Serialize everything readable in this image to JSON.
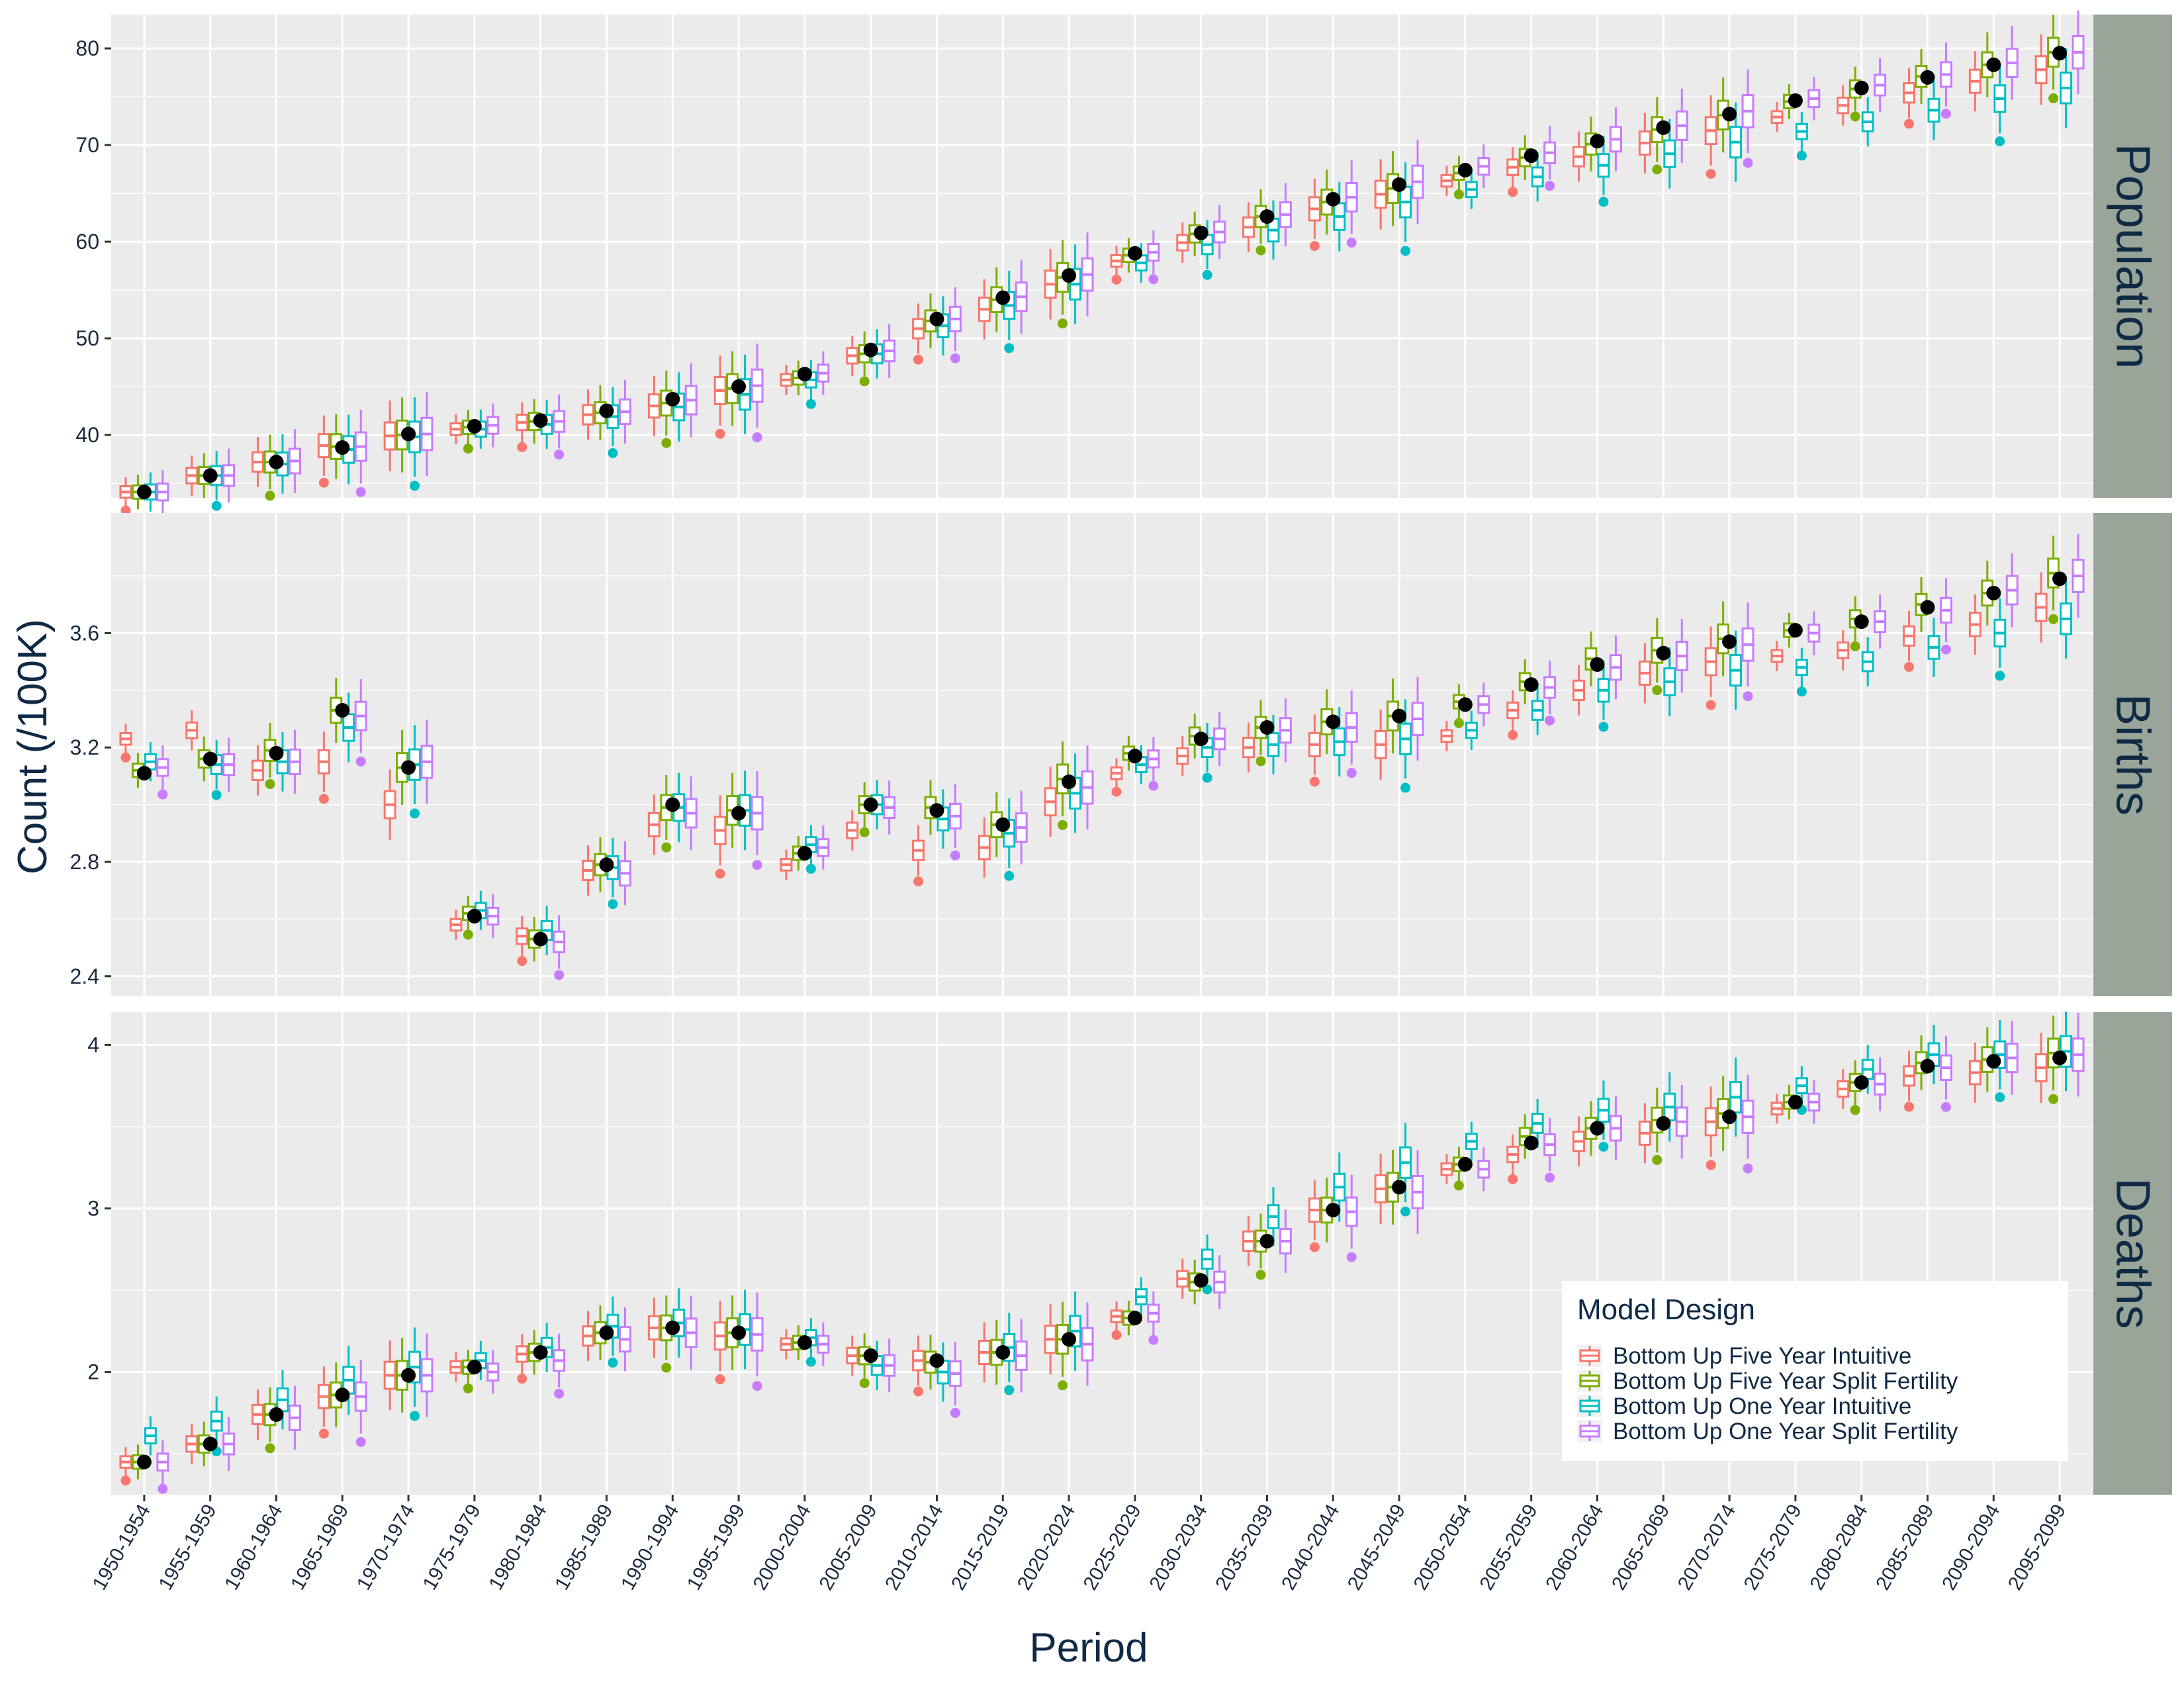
{
  "chart_data": {
    "type": "boxplot",
    "xlabel": "Period",
    "ylabel": "Count (/100K)",
    "periods": [
      "1950-1954",
      "1955-1959",
      "1960-1964",
      "1965-1969",
      "1970-1974",
      "1975-1979",
      "1980-1984",
      "1985-1989",
      "1990-1994",
      "1995-1999",
      "2000-2004",
      "2005-2009",
      "2010-2014",
      "2015-2019",
      "2020-2024",
      "2025-2029",
      "2030-2034",
      "2035-2039",
      "2040-2044",
      "2045-2049",
      "2050-2054",
      "2055-2059",
      "2060-2064",
      "2065-2069",
      "2070-2074",
      "2075-2079",
      "2080-2084",
      "2085-2089",
      "2090-2094",
      "2095-2099"
    ],
    "legend": {
      "title": "Model Design",
      "position": "bottom-right",
      "entries": [
        {
          "label": "Bottom Up Five Year Intuitive",
          "color": "#F8766D"
        },
        {
          "label": "Bottom Up Five Year Split Fertility",
          "color": "#7CAE00"
        },
        {
          "label": "Bottom Up One Year Intuitive",
          "color": "#00BFC4"
        },
        {
          "label": "Bottom Up One Year Split Fertility",
          "color": "#C77CFF"
        }
      ]
    },
    "observed_point_color": "#000000",
    "panel_background": "#EBEBEB",
    "strip_background": "#98A598",
    "facets": [
      {
        "label": "Population",
        "ylim": [
          33.5,
          83.5
        ],
        "yticks": [
          40,
          50,
          60,
          70,
          80
        ],
        "observed": [
          34.1,
          35.8,
          37.2,
          38.7,
          40.1,
          40.9,
          41.5,
          42.5,
          43.7,
          45.0,
          46.3,
          48.8,
          52.0,
          54.2,
          56.5,
          58.8,
          60.9,
          62.6,
          64.4,
          65.9,
          67.4,
          68.9,
          70.4,
          71.8,
          73.2,
          74.6,
          75.9,
          77.0,
          78.3,
          79.5
        ],
        "series_medians": [
          [
            34.1,
            35.8,
            37.2,
            38.9,
            39.9,
            40.6,
            41.3,
            42.1,
            43.0,
            44.6,
            45.7,
            48.2,
            51.0,
            53.0,
            55.6,
            58.0,
            59.9,
            61.5,
            63.4,
            64.9,
            66.3,
            67.7,
            68.8,
            70.2,
            71.5,
            72.9,
            74.1,
            75.4,
            76.6,
            77.8
          ],
          [
            34.1,
            35.8,
            37.2,
            38.8,
            40.0,
            40.8,
            41.4,
            42.3,
            43.3,
            44.8,
            45.9,
            48.4,
            51.8,
            54.0,
            56.3,
            58.6,
            60.8,
            62.6,
            64.1,
            65.5,
            67.1,
            68.7,
            70.1,
            71.6,
            73.1,
            74.5,
            75.8,
            77.1,
            78.3,
            79.6
          ],
          [
            34.1,
            35.8,
            37.0,
            38.5,
            39.8,
            40.6,
            41.1,
            41.9,
            42.9,
            44.2,
            45.7,
            48.4,
            51.3,
            53.4,
            55.6,
            57.8,
            59.7,
            61.2,
            62.6,
            64.1,
            65.4,
            66.7,
            67.9,
            69.1,
            70.3,
            71.4,
            72.4,
            73.6,
            74.8,
            75.9
          ],
          [
            34.1,
            35.8,
            37.3,
            38.8,
            40.1,
            41.0,
            41.4,
            42.4,
            43.6,
            45.1,
            46.4,
            48.7,
            52.0,
            54.3,
            56.6,
            58.9,
            61.0,
            62.8,
            64.6,
            66.2,
            67.8,
            69.2,
            70.6,
            72.0,
            73.5,
            74.8,
            76.2,
            77.3,
            78.5,
            79.6
          ]
        ]
      },
      {
        "label": "Births",
        "ylim": [
          2.33,
          4.02
        ],
        "yticks": [
          2.4,
          2.8,
          3.2,
          3.6
        ],
        "observed": [
          3.11,
          3.16,
          3.18,
          3.33,
          3.13,
          2.61,
          2.53,
          2.79,
          3.0,
          2.97,
          2.83,
          3.0,
          2.98,
          2.93,
          3.08,
          3.17,
          3.23,
          3.27,
          3.29,
          3.31,
          3.35,
          3.42,
          3.49,
          3.53,
          3.57,
          3.61,
          3.64,
          3.69,
          3.74,
          3.79
        ],
        "series_medians": [
          [
            3.23,
            3.26,
            3.12,
            3.15,
            3.0,
            2.58,
            2.54,
            2.77,
            2.93,
            2.91,
            2.79,
            2.91,
            2.84,
            2.85,
            3.01,
            3.11,
            3.17,
            3.2,
            3.21,
            3.21,
            3.24,
            3.33,
            3.4,
            3.46,
            3.5,
            3.52,
            3.54,
            3.59,
            3.63,
            3.69
          ],
          [
            3.12,
            3.16,
            3.19,
            3.33,
            3.13,
            2.62,
            2.53,
            2.79,
            2.99,
            2.98,
            2.83,
            3.0,
            2.99,
            2.93,
            3.09,
            3.18,
            3.24,
            3.27,
            3.29,
            3.31,
            3.36,
            3.43,
            3.51,
            3.54,
            3.58,
            3.61,
            3.65,
            3.7,
            3.74,
            3.81
          ],
          [
            3.15,
            3.14,
            3.15,
            3.27,
            3.14,
            2.63,
            2.56,
            2.78,
            2.99,
            2.98,
            2.86,
            3.0,
            2.95,
            2.9,
            3.04,
            3.14,
            3.2,
            3.21,
            3.22,
            3.23,
            3.26,
            3.33,
            3.4,
            3.43,
            3.47,
            3.48,
            3.5,
            3.55,
            3.6,
            3.65
          ],
          [
            3.13,
            3.14,
            3.15,
            3.31,
            3.15,
            2.61,
            2.52,
            2.76,
            2.97,
            2.97,
            2.85,
            2.99,
            2.96,
            2.92,
            3.06,
            3.16,
            3.23,
            3.26,
            3.27,
            3.3,
            3.35,
            3.41,
            3.48,
            3.52,
            3.56,
            3.6,
            3.64,
            3.68,
            3.75,
            3.8
          ]
        ]
      },
      {
        "label": "Deaths",
        "ylim": [
          1.25,
          4.2
        ],
        "yticks": [
          2,
          3,
          4
        ],
        "observed": [
          1.45,
          1.56,
          1.74,
          1.86,
          1.98,
          2.03,
          2.12,
          2.24,
          2.27,
          2.24,
          2.18,
          2.1,
          2.07,
          2.12,
          2.2,
          2.33,
          2.56,
          2.8,
          2.99,
          3.13,
          3.27,
          3.4,
          3.49,
          3.52,
          3.56,
          3.65,
          3.77,
          3.87,
          3.9,
          3.92
        ],
        "series_medians": [
          [
            1.45,
            1.56,
            1.74,
            1.85,
            1.98,
            2.03,
            2.11,
            2.22,
            2.27,
            2.22,
            2.17,
            2.1,
            2.07,
            2.12,
            2.2,
            2.34,
            2.57,
            2.8,
            2.99,
            3.12,
            3.24,
            3.33,
            3.41,
            3.46,
            3.53,
            3.61,
            3.73,
            3.81,
            3.83,
            3.86
          ],
          [
            1.45,
            1.56,
            1.74,
            1.86,
            1.98,
            2.03,
            2.12,
            2.24,
            2.27,
            2.24,
            2.18,
            2.1,
            2.06,
            2.12,
            2.2,
            2.33,
            2.55,
            2.8,
            2.99,
            3.13,
            3.27,
            3.44,
            3.49,
            3.54,
            3.58,
            3.65,
            3.77,
            3.89,
            3.91,
            3.95
          ],
          [
            1.61,
            1.7,
            1.83,
            1.95,
            2.03,
            2.07,
            2.15,
            2.28,
            2.3,
            2.26,
            2.21,
            2.04,
            2.0,
            2.15,
            2.25,
            2.46,
            2.69,
            2.95,
            3.13,
            3.28,
            3.41,
            3.52,
            3.6,
            3.62,
            3.68,
            3.75,
            3.85,
            3.94,
            3.94,
            3.96
          ],
          [
            1.45,
            1.56,
            1.72,
            1.85,
            1.98,
            2.0,
            2.07,
            2.2,
            2.24,
            2.23,
            2.17,
            2.04,
            1.99,
            2.1,
            2.17,
            2.36,
            2.55,
            2.8,
            2.98,
            3.1,
            3.24,
            3.39,
            3.49,
            3.53,
            3.56,
            3.65,
            3.76,
            3.86,
            3.92,
            3.94
          ]
        ]
      }
    ]
  }
}
